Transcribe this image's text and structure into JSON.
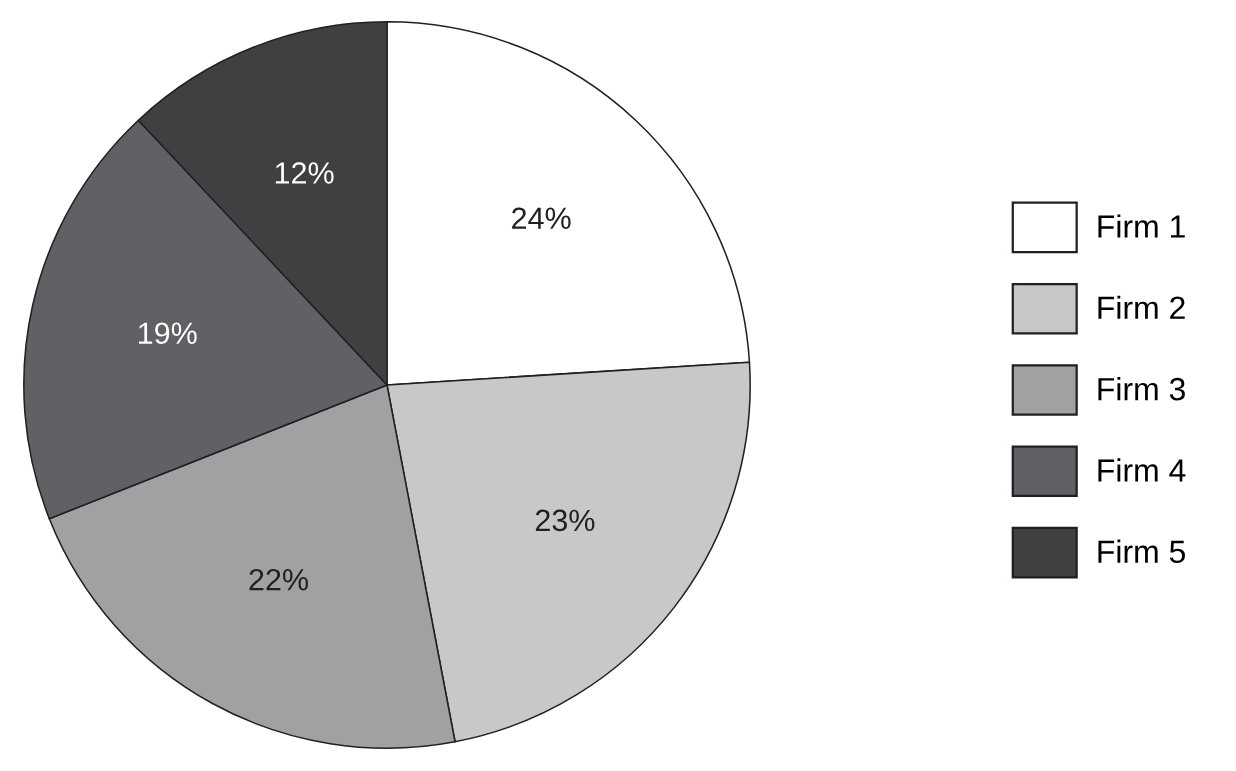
{
  "chart_data": {
    "type": "pie",
    "categories": [
      "Firm 1",
      "Firm 2",
      "Firm 3",
      "Firm 4",
      "Firm 5"
    ],
    "values": [
      24,
      23,
      22,
      19,
      12
    ],
    "colors": [
      "#ffffff",
      "#c7c8ca",
      "#a0a1a3",
      "#606165",
      "#404042"
    ],
    "value_labels": [
      "24%",
      "23%",
      "22%",
      "19%",
      "12%"
    ],
    "legend": "right"
  }
}
